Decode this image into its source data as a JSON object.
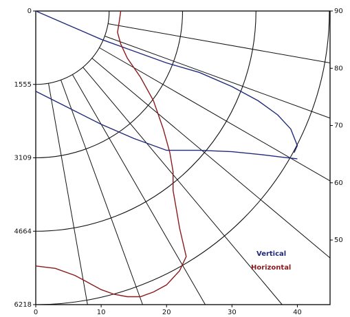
{
  "chart_data": {
    "type": "line",
    "coordinate_system": "polar-quadrant",
    "left_axis_ticks": [
      "0",
      "1555",
      "3109",
      "4664",
      "6218"
    ],
    "bottom_axis_ticks": [
      "0",
      "10",
      "20",
      "30",
      "40"
    ],
    "right_axis_ticks": [
      "90",
      "80",
      "70",
      "60",
      "50"
    ],
    "grid": true,
    "legend_position": "bottom-right",
    "series": [
      {
        "name": "Vertical",
        "color": "#1f2a7a",
        "x": [
          0,
          5,
          10,
          15,
          20,
          25,
          30,
          34,
          37,
          39,
          40,
          39.5
        ],
        "y": [
          0,
          300,
          600,
          850,
          1100,
          1300,
          1600,
          1900,
          2200,
          2500,
          2850,
          3000
        ]
      },
      {
        "name": "Horizontal",
        "color": "#8b1a1a",
        "x": [
          13,
          12.8,
          12.5,
          13,
          14,
          16,
          18,
          19.5,
          20.5,
          21,
          21,
          21.5,
          22,
          22.5,
          23,
          22,
          20,
          18,
          16,
          14,
          12,
          10,
          6,
          3,
          0
        ],
        "y": [
          0,
          200,
          450,
          700,
          1000,
          1400,
          1900,
          2500,
          3000,
          3400,
          3800,
          4200,
          4600,
          4900,
          5200,
          5500,
          5800,
          5950,
          6050,
          6050,
          6000,
          5900,
          5600,
          5450,
          5400
        ]
      },
      {
        "name": "",
        "color": "#1f2a7a",
        "x": [
          0,
          5,
          10,
          15,
          20,
          25,
          30,
          35,
          38,
          40
        ],
        "y": [
          1700,
          2050,
          2400,
          2700,
          2950,
          2950,
          2980,
          3050,
          3100,
          3130
        ]
      }
    ]
  }
}
